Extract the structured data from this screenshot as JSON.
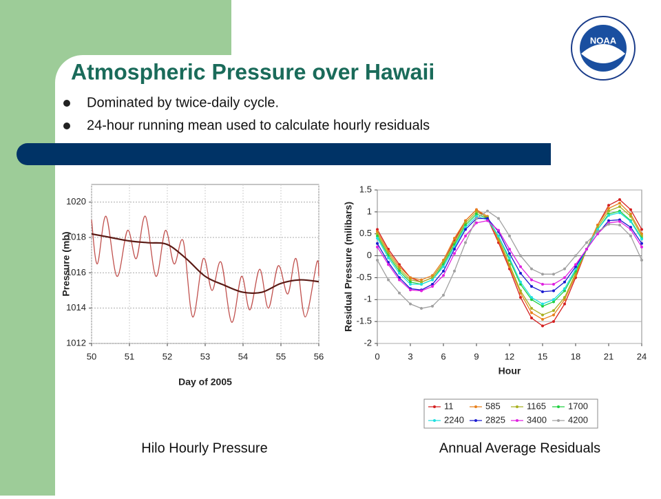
{
  "title": "Atmospheric Pressure over Hawaii",
  "bullets": [
    "Dominated by twice-daily cycle.",
    "24-hour running mean used to calculate hourly residuals"
  ],
  "logo_text": "NOAA",
  "captions": [
    "Hilo Hourly Pressure",
    "Annual Average Residuals"
  ],
  "chart_data": [
    {
      "type": "line",
      "x_label": "Day of 2005",
      "y_label": "Pressure  (mb)",
      "xlim": [
        50,
        56
      ],
      "ylim": [
        1012,
        1021
      ],
      "xticks": [
        50,
        51,
        52,
        53,
        54,
        55,
        56
      ],
      "yticks": [
        1012,
        1014,
        1016,
        1018,
        1020
      ],
      "grid": true,
      "series": [
        {
          "color": "#c0504d",
          "x": [
            50.0,
            50.15,
            50.38,
            50.67,
            50.95,
            51.18,
            51.42,
            51.7,
            51.95,
            52.18,
            52.42,
            52.67,
            52.95,
            53.18,
            53.42,
            53.7,
            53.96,
            54.18,
            54.44,
            54.67,
            54.93,
            55.18,
            55.4,
            55.64,
            55.95,
            56.0
          ],
          "values": [
            1019.0,
            1016.5,
            1019.2,
            1015.8,
            1018.4,
            1016.8,
            1019.2,
            1015.8,
            1018.4,
            1016.5,
            1017.8,
            1013.5,
            1016.8,
            1015.0,
            1016.6,
            1013.2,
            1015.8,
            1013.9,
            1016.2,
            1014.0,
            1016.4,
            1014.8,
            1016.8,
            1013.5,
            1016.6,
            1015.8
          ]
        },
        {
          "color": "#5a1a14",
          "x": [
            50,
            50.5,
            51,
            51.5,
            52,
            52.5,
            53,
            53.5,
            54,
            54.5,
            55,
            55.5,
            56
          ],
          "values": [
            1018.2,
            1018.0,
            1017.8,
            1017.7,
            1017.6,
            1016.8,
            1015.8,
            1015.3,
            1014.9,
            1014.9,
            1015.4,
            1015.6,
            1015.5
          ]
        }
      ]
    },
    {
      "type": "line",
      "markers": true,
      "x_label": "Hour",
      "y_label": "Residual Pressure (milibars)",
      "xlim": [
        0,
        24
      ],
      "ylim": [
        -2,
        1.5
      ],
      "xticks": [
        0,
        3,
        6,
        9,
        12,
        15,
        18,
        21,
        24
      ],
      "yticks": [
        -2,
        -1.5,
        -1,
        -0.5,
        0,
        0.5,
        1,
        1.5
      ],
      "grid": true,
      "legend": "bottom",
      "x": [
        0,
        1,
        2,
        3,
        4,
        5,
        6,
        7,
        8,
        9,
        10,
        11,
        12,
        13,
        14,
        15,
        16,
        17,
        18,
        19,
        20,
        21,
        22,
        23,
        24
      ],
      "series": [
        {
          "name": "11",
          "color": "#d42020",
          "values": [
            0.6,
            0.15,
            -0.2,
            -0.5,
            -0.6,
            -0.5,
            -0.15,
            0.35,
            0.8,
            1.05,
            0.85,
            0.3,
            -0.3,
            -0.95,
            -1.42,
            -1.6,
            -1.5,
            -1.1,
            -0.5,
            0.15,
            0.7,
            1.15,
            1.28,
            1.05,
            0.6
          ]
        },
        {
          "name": "585",
          "color": "#e8801c",
          "values": [
            0.55,
            0.1,
            -0.25,
            -0.5,
            -0.55,
            -0.45,
            -0.1,
            0.4,
            0.8,
            1.05,
            0.9,
            0.35,
            -0.25,
            -0.85,
            -1.3,
            -1.45,
            -1.35,
            -1.0,
            -0.45,
            0.15,
            0.7,
            1.08,
            1.2,
            0.95,
            0.5
          ]
        },
        {
          "name": "1165",
          "color": "#a8b020",
          "values": [
            0.5,
            0.05,
            -0.3,
            -0.55,
            -0.6,
            -0.5,
            -0.15,
            0.3,
            0.75,
            1.0,
            0.88,
            0.4,
            -0.2,
            -0.8,
            -1.2,
            -1.35,
            -1.25,
            -0.95,
            -0.4,
            0.15,
            0.65,
            1.02,
            1.12,
            0.9,
            0.45
          ]
        },
        {
          "name": "1700",
          "color": "#20d040",
          "values": [
            0.45,
            0.0,
            -0.35,
            -0.6,
            -0.65,
            -0.55,
            -0.2,
            0.25,
            0.7,
            0.95,
            0.85,
            0.45,
            -0.1,
            -0.65,
            -1.0,
            -1.15,
            -1.05,
            -0.8,
            -0.35,
            0.15,
            0.6,
            0.95,
            1.02,
            0.8,
            0.4
          ]
        },
        {
          "name": "2240",
          "color": "#20e0e0",
          "values": [
            0.4,
            -0.05,
            -0.4,
            -0.65,
            -0.65,
            -0.55,
            -0.25,
            0.2,
            0.65,
            0.9,
            0.82,
            0.45,
            -0.05,
            -0.6,
            -0.95,
            -1.1,
            -1.0,
            -0.75,
            -0.3,
            0.15,
            0.6,
            0.92,
            0.98,
            0.78,
            0.38
          ]
        },
        {
          "name": "2825",
          "color": "#1a1ad0",
          "values": [
            0.28,
            -0.15,
            -0.5,
            -0.75,
            -0.78,
            -0.65,
            -0.35,
            0.15,
            0.6,
            0.85,
            0.85,
            0.55,
            0.05,
            -0.4,
            -0.7,
            -0.82,
            -0.8,
            -0.6,
            -0.25,
            0.15,
            0.5,
            0.8,
            0.82,
            0.65,
            0.28
          ]
        },
        {
          "name": "3400",
          "color": "#e020e0",
          "values": [
            0.2,
            -0.2,
            -0.55,
            -0.78,
            -0.8,
            -0.7,
            -0.45,
            0.05,
            0.45,
            0.75,
            0.8,
            0.58,
            0.15,
            -0.25,
            -0.55,
            -0.65,
            -0.65,
            -0.5,
            -0.2,
            0.15,
            0.5,
            0.75,
            0.78,
            0.6,
            0.2
          ]
        },
        {
          "name": "4200",
          "color": "#a0a0a0",
          "values": [
            -0.1,
            -0.55,
            -0.85,
            -1.1,
            -1.2,
            -1.15,
            -0.9,
            -0.35,
            0.3,
            0.85,
            1.02,
            0.85,
            0.45,
            0.0,
            -0.3,
            -0.42,
            -0.42,
            -0.3,
            0.0,
            0.3,
            0.55,
            0.72,
            0.7,
            0.45,
            -0.1
          ]
        }
      ]
    }
  ]
}
